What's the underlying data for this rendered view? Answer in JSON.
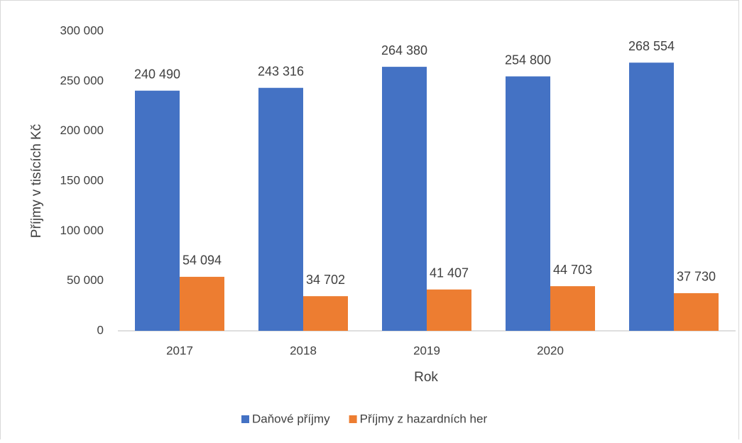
{
  "chart_data": {
    "type": "bar",
    "categories": [
      "2017",
      "2018",
      "2019",
      "2020",
      null
    ],
    "series": [
      {
        "name": "Daňové příjmy",
        "color": "#4472c4",
        "values": [
          240490,
          243316,
          264380,
          254800,
          268554
        ],
        "value_labels": [
          "240 490",
          "243 316",
          "264 380",
          "254 800",
          "268 554"
        ]
      },
      {
        "name": "Příjmy z hazardních her",
        "color": "#ed7d31",
        "values": [
          54094,
          34702,
          41407,
          44703,
          37730
        ],
        "value_labels": [
          "54 094",
          "34 702",
          "41 407",
          "44 703",
          "37 730"
        ]
      }
    ],
    "xlabel": "Rok",
    "ylabel": "Příjmy v tisících Kč",
    "ylim": [
      0,
      300000
    ],
    "yticks": [
      0,
      {
        "value": 50000,
        "label": "50 000"
      },
      {
        "value": 100000,
        "label": "100 000"
      },
      {
        "value": 150000,
        "label": "150 000"
      },
      {
        "value": 200000,
        "label": "200 000"
      },
      {
        "value": 250000,
        "label": "250 000"
      },
      {
        "value": 300000,
        "label": "300 000"
      }
    ],
    "grid": false,
    "legend": "bottom"
  }
}
